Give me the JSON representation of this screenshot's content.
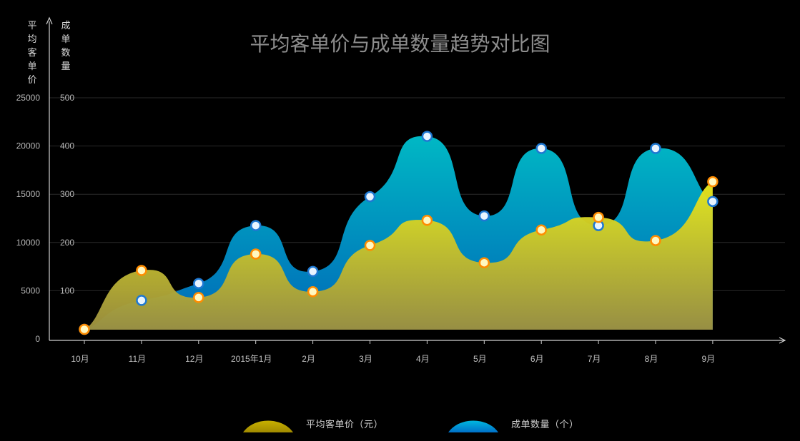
{
  "chart_data": {
    "type": "area",
    "title": "平均客单价与成单数量趋势对比图",
    "categories": [
      "10月",
      "11月",
      "12月",
      "2015年1月",
      "2月",
      "3月",
      "4月",
      "5月",
      "6月",
      "7月",
      "8月",
      "9月"
    ],
    "left_axis": {
      "label": "平均客单价",
      "ticks": [
        "0",
        "5000",
        "10000",
        "15000",
        "20000",
        "25000"
      ],
      "ylim": [
        0,
        25000
      ]
    },
    "right_axis": {
      "label": "成单数量",
      "ticks": [
        "100",
        "200",
        "300",
        "400",
        "500"
      ],
      "ylim": [
        0,
        500
      ]
    },
    "series": [
      {
        "name": "平均客单价（元）",
        "axis": "left",
        "values": [
          1000,
          7100,
          4300,
          8800,
          4900,
          9700,
          12300,
          7900,
          11300,
          12600,
          10200,
          16300
        ],
        "color_top": "#e6e61a",
        "color_bottom": "#a09030",
        "marker_color": "#ff8c00"
      },
      {
        "name": "成单数量（个）",
        "axis": "right",
        "values": [
          20,
          80,
          115,
          235,
          140,
          295,
          420,
          255,
          395,
          235,
          395,
          285
        ],
        "color_top": "#00b8c8",
        "color_bottom": "#0070b8",
        "marker_color": "#1e78d2"
      }
    ],
    "grid": true,
    "legend_position": "bottom"
  }
}
